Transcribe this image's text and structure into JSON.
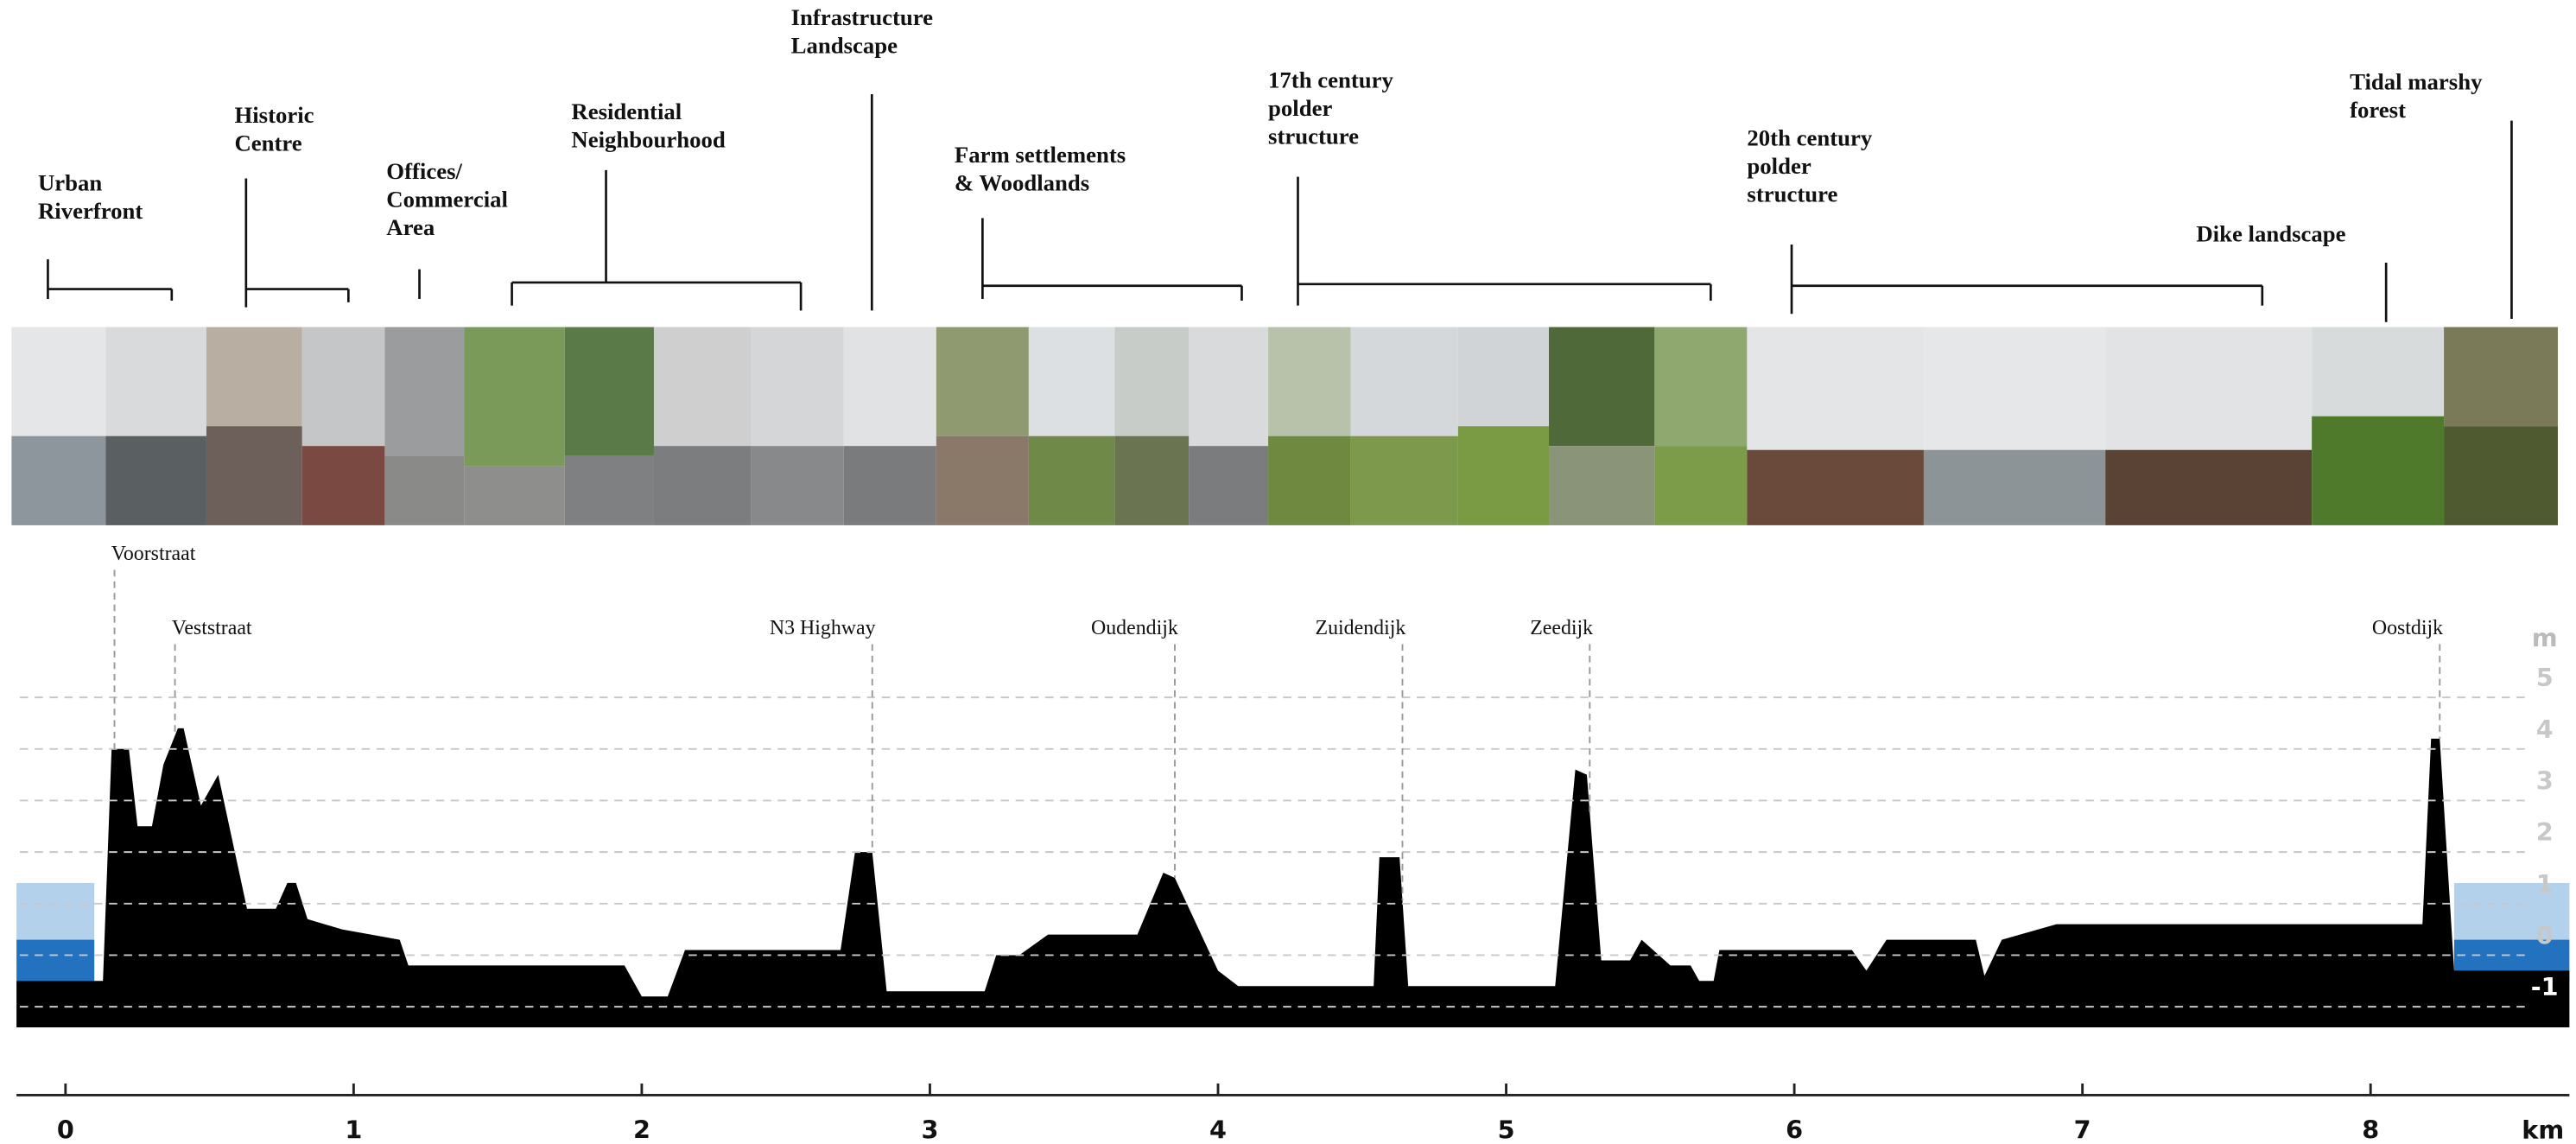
{
  "chart_data": {
    "type": "area",
    "color": "#000000",
    "x": [
      -0.17,
      0.1,
      0.13,
      0.16,
      0.22,
      0.25,
      0.3,
      0.34,
      0.39,
      0.41,
      0.47,
      0.53,
      0.63,
      0.73,
      0.77,
      0.8,
      0.84,
      0.96,
      1.16,
      1.19,
      1.94,
      2.0,
      2.09,
      2.15,
      2.69,
      2.74,
      2.8,
      2.85,
      3.19,
      3.23,
      3.31,
      3.41,
      3.72,
      3.81,
      3.85,
      4.0,
      4.07,
      4.54,
      4.56,
      4.63,
      4.66,
      5.17,
      5.24,
      5.28,
      5.33,
      5.43,
      5.47,
      5.51,
      5.57,
      5.64,
      5.67,
      5.72,
      5.74,
      6.2,
      6.25,
      6.32,
      6.63,
      6.66,
      6.72,
      6.91,
      8.18,
      8.21,
      8.24,
      8.29,
      8.69
    ],
    "values": [
      -0.5,
      -0.5,
      -0.5,
      4.0,
      4.0,
      2.5,
      2.5,
      3.7,
      4.4,
      4.4,
      2.9,
      3.5,
      0.9,
      0.9,
      1.4,
      1.4,
      0.7,
      0.5,
      0.3,
      -0.2,
      -0.2,
      -0.8,
      -0.8,
      0.1,
      0.1,
      2.0,
      2.0,
      -0.7,
      -0.7,
      0,
      0,
      0.4,
      0.4,
      1.6,
      1.5,
      -0.3,
      -0.6,
      -0.6,
      1.9,
      1.9,
      -0.6,
      -0.6,
      3.6,
      3.5,
      -0.1,
      -0.1,
      0.3,
      0.1,
      -0.2,
      -0.2,
      -0.5,
      -0.5,
      0.1,
      0.1,
      -0.3,
      0.3,
      0.3,
      -0.4,
      0.3,
      0.6,
      0.6,
      4.2,
      4.2,
      -0.3,
      -0.3
    ],
    "xlim": [
      -0.17,
      8.69
    ],
    "ylim": [
      -1.4,
      6
    ],
    "xticks": [
      0,
      1,
      2,
      3,
      4,
      5,
      6,
      7,
      8
    ],
    "yticks": [
      -1,
      0,
      1,
      2,
      3,
      4,
      5
    ],
    "x_label": "km",
    "y_label": "m",
    "grid": true,
    "water_levels": [
      1.4,
      0.3
    ],
    "water_colors": [
      "#b4d1ec",
      "#2272c0"
    ],
    "annotations": [
      {
        "text": "Voorstraat",
        "x": 0.17
      },
      {
        "text": "Veststraat",
        "x": 0.38
      },
      {
        "text": "N3 Highway",
        "x": 2.8
      },
      {
        "text": "Oudendijk",
        "x": 3.85
      },
      {
        "text": "Zuidendijk",
        "x": 4.64
      },
      {
        "text": "Zeedijk",
        "x": 5.29
      },
      {
        "text": "Oostdijk",
        "x": 8.24
      }
    ],
    "zones": [
      {
        "lines": [
          "Urban",
          "Riverfront"
        ]
      },
      {
        "lines": [
          "Historic",
          "Centre"
        ]
      },
      {
        "lines": [
          "Offices/",
          "Commercial",
          "Area"
        ]
      },
      {
        "lines": [
          "Residential",
          "Neighbourhood"
        ]
      },
      {
        "lines": [
          "Infrastructure",
          "Landscape"
        ]
      },
      {
        "lines": [
          "Farm settlements",
          "& Woodlands"
        ]
      },
      {
        "lines": [
          "17th century",
          "polder",
          "structure"
        ]
      },
      {
        "lines": [
          "20th century",
          "polder",
          "structure"
        ]
      },
      {
        "lines": [
          "Dike landscape"
        ]
      },
      {
        "lines": [
          "Tidal marshy",
          "forest"
        ]
      }
    ]
  }
}
